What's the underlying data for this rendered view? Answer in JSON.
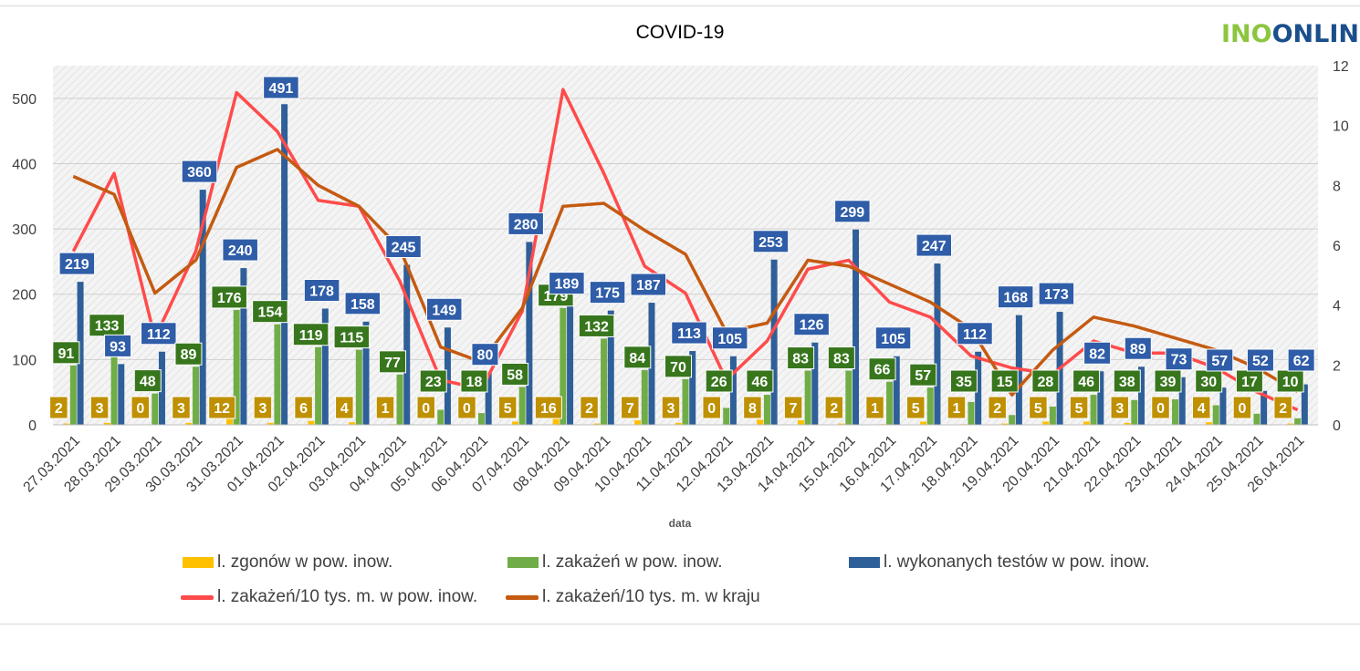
{
  "brand": {
    "part1": "INO",
    "part2": "ONLIN"
  },
  "colors": {
    "deaths": "#ffc000",
    "cases_local": "#70ad47",
    "tests": "#2e5f99",
    "rate_local": "#ff4b4b",
    "rate_country": "#c55a11",
    "label_deaths_bg": "#bf9000",
    "label_cases_bg": "#38761d",
    "label_tests_bg": "#2f5da8"
  },
  "chart_data": {
    "type": "bar",
    "title": "COVID-19",
    "xlabel": "data",
    "categories": [
      "27.03.2021",
      "28.03.2021",
      "29.03.2021",
      "30.03.2021",
      "31.03.2021",
      "01.04.2021",
      "02.04.2021",
      "03.04.2021",
      "04.04.2021",
      "05.04.2021",
      "06.04.2021",
      "07.04.2021",
      "08.04.2021",
      "09.04.2021",
      "10.04.2021",
      "11.04.2021",
      "12.04.2021",
      "13.04.2021",
      "14.04.2021",
      "15.04.2021",
      "16.04.2021",
      "17.04.2021",
      "18.04.2021",
      "19.04.2021",
      "20.04.2021",
      "21.04.2021",
      "22.04.2021",
      "23.04.2021",
      "24.04.2021",
      "25.04.2021",
      "26.04.2021"
    ],
    "ylim": [
      0,
      550
    ],
    "yticks": [
      0,
      100,
      200,
      300,
      400,
      500
    ],
    "y2lim": [
      0,
      12
    ],
    "y2ticks": [
      0,
      2,
      4,
      6,
      8,
      10,
      12
    ],
    "grid": true,
    "legend_position": "bottom",
    "series": [
      {
        "name": "l. zgonów w pow. inow.",
        "type": "bar",
        "axis": "left",
        "values": [
          2,
          3,
          0,
          3,
          12,
          3,
          6,
          4,
          1,
          0,
          0,
          5,
          16,
          2,
          7,
          3,
          0,
          8,
          7,
          2,
          1,
          5,
          1,
          2,
          5,
          5,
          3,
          0,
          4,
          0,
          2
        ]
      },
      {
        "name": "l. zakażeń w pow. inow.",
        "type": "bar",
        "axis": "left",
        "values": [
          91,
          133,
          48,
          89,
          176,
          154,
          119,
          115,
          77,
          23,
          18,
          58,
          179,
          132,
          84,
          70,
          26,
          46,
          83,
          83,
          66,
          57,
          35,
          15,
          28,
          46,
          38,
          39,
          30,
          17,
          10
        ]
      },
      {
        "name": "l. wykonanych testów w pow. inow.",
        "type": "bar",
        "axis": "left",
        "values": [
          219,
          93,
          112,
          360,
          240,
          491,
          178,
          158,
          245,
          149,
          80,
          280,
          189,
          175,
          187,
          113,
          105,
          253,
          126,
          299,
          105,
          247,
          112,
          168,
          173,
          82,
          89,
          73,
          57,
          52,
          62
        ]
      },
      {
        "name": "l. zakażeń/10 tys. m. w pow. inow.",
        "type": "line",
        "axis": "right",
        "values": [
          5.8,
          8.4,
          2.9,
          5.8,
          11.1,
          9.8,
          7.5,
          7.3,
          4.8,
          1.5,
          1.2,
          3.8,
          11.2,
          8.4,
          5.3,
          4.4,
          1.5,
          2.8,
          5.2,
          5.5,
          4.1,
          3.6,
          2.3,
          1.9,
          1.7,
          2.8,
          2.4,
          2.4,
          1.9,
          1.1,
          0.5
        ]
      },
      {
        "name": "l. zakażeń/10 tys. m. w kraju",
        "type": "line",
        "axis": "right",
        "values": [
          8.3,
          7.7,
          4.4,
          5.5,
          8.6,
          9.2,
          8.0,
          7.3,
          5.9,
          2.6,
          2.1,
          3.9,
          7.3,
          7.4,
          6.5,
          5.7,
          3.1,
          3.4,
          5.5,
          5.3,
          4.7,
          4.1,
          3.2,
          1.0,
          2.5,
          3.6,
          3.3,
          2.9,
          2.5,
          1.9,
          1.1
        ]
      }
    ]
  }
}
